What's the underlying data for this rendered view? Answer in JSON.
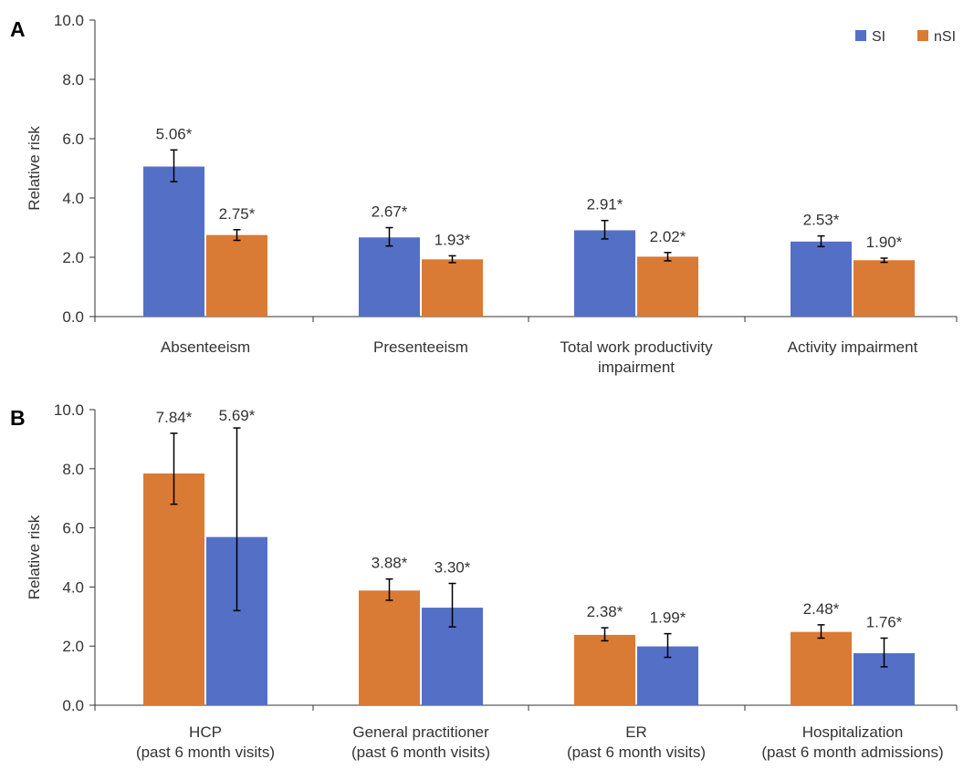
{
  "colors": {
    "si": "#5470c6",
    "nsi": "#d97a35",
    "axis": "#333333",
    "text": "#333333"
  },
  "legend": {
    "items": [
      {
        "label": "SI",
        "color": "#5470c6"
      },
      {
        "label": "nSI",
        "color": "#d97a35"
      }
    ]
  },
  "chart_data": [
    {
      "panel_label": "A",
      "type": "bar",
      "ylabel": "Relative risk",
      "ylim": [
        0,
        10
      ],
      "yticks": [
        "0.0",
        "2.0",
        "4.0",
        "6.0",
        "8.0",
        "10.0"
      ],
      "grid": false,
      "legend_position": "top-right",
      "categories": [
        [
          "Absenteeism"
        ],
        [
          "Presenteeism"
        ],
        [
          "Total work productivity",
          "impairment"
        ],
        [
          "Activity impairment"
        ]
      ],
      "series": [
        {
          "name": "SI",
          "color": "#5470c6",
          "values": [
            5.06,
            2.67,
            2.91,
            2.53
          ],
          "err_low": [
            4.55,
            2.38,
            2.62,
            2.36
          ],
          "err_high": [
            5.62,
            3.0,
            3.24,
            2.72
          ],
          "labels": [
            "5.06*",
            "2.67*",
            "2.91*",
            "2.53*"
          ]
        },
        {
          "name": "nSI",
          "color": "#d97a35",
          "values": [
            2.75,
            1.93,
            2.02,
            1.9
          ],
          "err_low": [
            2.57,
            1.82,
            1.88,
            1.83
          ],
          "err_high": [
            2.93,
            2.05,
            2.16,
            1.97
          ],
          "labels": [
            "2.75*",
            "1.93*",
            "2.02*",
            "1.90*"
          ]
        }
      ]
    },
    {
      "panel_label": "B",
      "type": "bar",
      "ylabel": "Relative risk",
      "ylim": [
        0,
        10
      ],
      "yticks": [
        "0.0",
        "2.0",
        "4.0",
        "6.0",
        "8.0",
        "10.0"
      ],
      "grid": false,
      "categories": [
        [
          "HCP",
          "(past 6 month visits)"
        ],
        [
          "General practitioner",
          "(past 6 month visits)"
        ],
        [
          "ER",
          "(past 6 month visits)"
        ],
        [
          "Hospitalization",
          "(past 6 month admissions)"
        ]
      ],
      "series": [
        {
          "color": "#d97a35",
          "values": [
            7.84,
            3.88,
            2.38,
            2.48
          ],
          "err_low": [
            6.8,
            3.55,
            2.18,
            2.27
          ],
          "err_high": [
            9.2,
            4.27,
            2.62,
            2.72
          ],
          "labels": [
            "7.84*",
            "3.88*",
            "2.38*",
            "2.48*"
          ]
        },
        {
          "color": "#5470c6",
          "values": [
            5.69,
            3.3,
            1.99,
            1.76
          ],
          "err_low": [
            3.2,
            2.65,
            1.62,
            1.3
          ],
          "err_high": [
            9.38,
            4.12,
            2.42,
            2.27
          ],
          "labels": [
            "5.69*",
            "3.30*",
            "1.99*",
            "1.76*"
          ]
        }
      ]
    }
  ]
}
